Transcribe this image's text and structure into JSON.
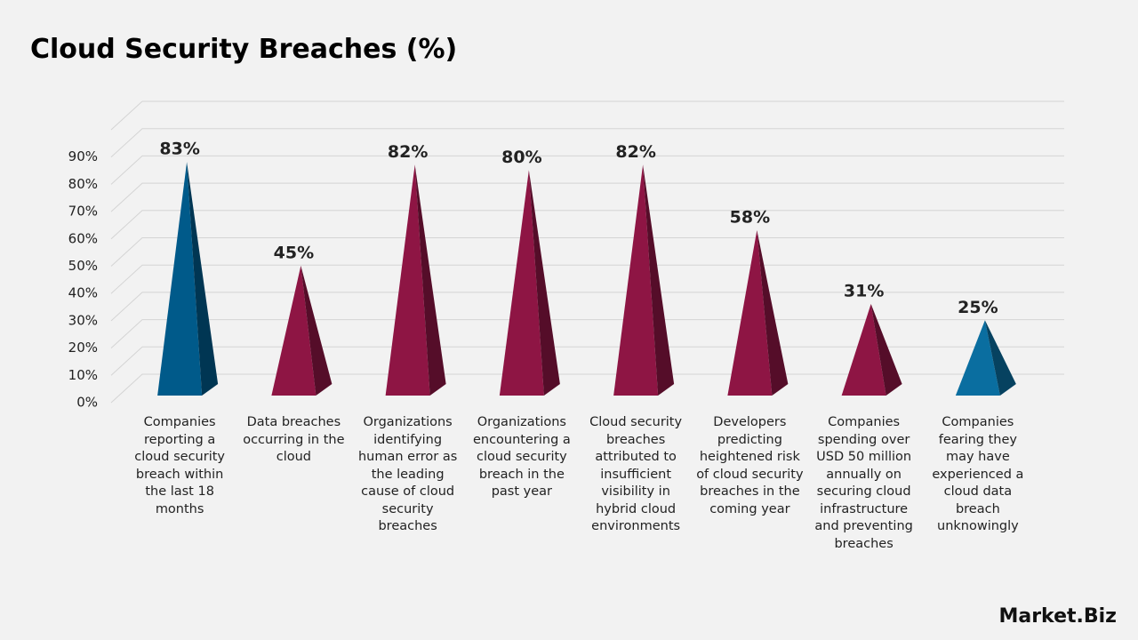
{
  "chart_data": {
    "type": "pyramid",
    "title": "Cloud Security Breaches (%)",
    "categories": [
      "Companies reporting a cloud security breach within the last 18 months",
      "Data breaches occurring in the cloud",
      "Organizations identifying human error as the leading cause of cloud security breaches",
      "Organizations encountering a cloud security breach in the past year",
      "Cloud security breaches attributed to insufficient visibility in hybrid cloud environments",
      "Developers predicting heightened risk of cloud security breaches in the coming year",
      "Companies spending over USD 50 million annually on securing cloud infrastructure and preventing breaches",
      "Companies fearing they may have experienced a cloud data breach unknowingly"
    ],
    "values": [
      83,
      45,
      82,
      80,
      82,
      58,
      31,
      25
    ],
    "value_labels": [
      "83%",
      "45%",
      "82%",
      "80%",
      "82%",
      "58%",
      "31%",
      "25%"
    ],
    "colors": [
      "#005a8a",
      "#8e1544",
      "#8e1544",
      "#8e1544",
      "#8e1544",
      "#8e1544",
      "#8e1544",
      "#0a6ea0"
    ],
    "ylim": [
      0,
      100
    ],
    "yticks": [
      {
        "value": 0,
        "label": "0%"
      },
      {
        "value": 10,
        "label": "10%"
      },
      {
        "value": 20,
        "label": "20%"
      },
      {
        "value": 30,
        "label": "30%"
      },
      {
        "value": 40,
        "label": "40%"
      },
      {
        "value": 50,
        "label": "50%"
      },
      {
        "value": 60,
        "label": "60%"
      },
      {
        "value": 70,
        "label": "70%"
      },
      {
        "value": 80,
        "label": "80%"
      },
      {
        "value": 90,
        "label": "90%"
      }
    ],
    "grid": true
  },
  "logo": "Market.Biz"
}
